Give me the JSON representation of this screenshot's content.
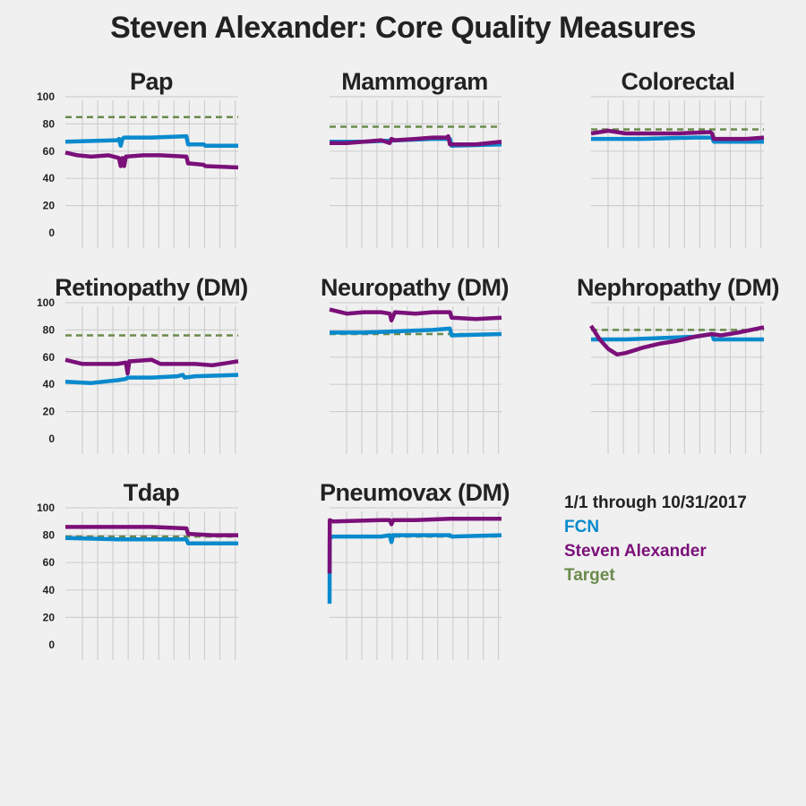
{
  "title": "Steven Alexander: Core Quality Measures",
  "legend": {
    "period": "1/1 through 10/31/2017",
    "items": [
      {
        "label": "FCN",
        "color": "#0a8acd"
      },
      {
        "label": "Steven Alexander",
        "color": "#7b1079"
      },
      {
        "label": "Target",
        "color": "#6a8a4c"
      }
    ]
  },
  "colors": {
    "fcn": "#0a8acd",
    "provider": "#7b1079",
    "target": "#6a8a4c",
    "grid": "#cfcfcf",
    "background": "#f0f0f0"
  },
  "chart_data": [
    {
      "type": "line",
      "title": "Pap",
      "ylim": [
        0,
        100
      ],
      "yticks": [
        0,
        20,
        40,
        60,
        80,
        100
      ],
      "grid": true,
      "target": 85,
      "series": [
        {
          "name": "FCN",
          "x": [
            0,
            0.3,
            0.31,
            0.32,
            0.33,
            0.34,
            0.5,
            0.7,
            0.71,
            0.72,
            0.8,
            0.81,
            1
          ],
          "values": [
            67,
            68,
            69,
            64,
            69,
            70,
            70,
            71,
            65,
            65,
            65,
            64,
            64
          ]
        },
        {
          "name": "Steven Alexander",
          "x": [
            0,
            0.07,
            0.15,
            0.25,
            0.31,
            0.32,
            0.33,
            0.34,
            0.35,
            0.45,
            0.55,
            0.7,
            0.71,
            0.72,
            0.8,
            0.81,
            1
          ],
          "values": [
            59,
            57,
            56,
            57,
            55,
            49,
            55,
            49,
            56,
            57,
            57,
            56,
            51,
            51,
            50,
            49,
            48
          ]
        }
      ]
    },
    {
      "type": "line",
      "title": "Mammogram",
      "ylim": [
        0,
        100
      ],
      "yticks": [
        0,
        20,
        40,
        60,
        80,
        100
      ],
      "grid": true,
      "target": 78,
      "series": [
        {
          "name": "FCN",
          "x": [
            0,
            0.2,
            0.4,
            0.6,
            0.7,
            0.71,
            1
          ],
          "values": [
            67,
            67,
            68,
            69,
            69,
            64,
            65
          ]
        },
        {
          "name": "Steven Alexander",
          "x": [
            0,
            0.1,
            0.2,
            0.3,
            0.35,
            0.36,
            0.38,
            0.5,
            0.6,
            0.68,
            0.69,
            0.7,
            0.75,
            0.85,
            1
          ],
          "values": [
            66,
            66,
            67,
            68,
            66,
            69,
            68,
            69,
            70,
            70,
            71,
            65,
            65,
            65,
            67
          ]
        }
      ]
    },
    {
      "type": "line",
      "title": "Colorectal",
      "ylim": [
        0,
        100
      ],
      "yticks": [
        0,
        20,
        40,
        60,
        80,
        100
      ],
      "grid": true,
      "target": 76,
      "series": [
        {
          "name": "FCN",
          "x": [
            0,
            0.3,
            0.6,
            0.7,
            0.71,
            1
          ],
          "values": [
            69,
            69,
            70,
            70,
            67,
            67
          ]
        },
        {
          "name": "Steven Alexander",
          "x": [
            0,
            0.1,
            0.2,
            0.3,
            0.5,
            0.69,
            0.7,
            0.71,
            0.9,
            1
          ],
          "values": [
            73,
            75,
            73,
            73,
            73,
            74,
            73,
            69,
            69,
            70
          ]
        }
      ]
    },
    {
      "type": "line",
      "title": "Retinopathy (DM)",
      "ylim": [
        0,
        100
      ],
      "yticks": [
        0,
        20,
        40,
        60,
        80,
        100
      ],
      "grid": true,
      "target": 76,
      "series": [
        {
          "name": "FCN",
          "x": [
            0,
            0.15,
            0.3,
            0.35,
            0.36,
            0.5,
            0.65,
            0.68,
            0.69,
            0.75,
            1
          ],
          "values": [
            42,
            41,
            43,
            44,
            45,
            45,
            46,
            47,
            45,
            46,
            47
          ]
        },
        {
          "name": "Steven Alexander",
          "x": [
            0,
            0.1,
            0.2,
            0.3,
            0.35,
            0.36,
            0.37,
            0.38,
            0.5,
            0.55,
            0.65,
            0.75,
            0.85,
            1
          ],
          "values": [
            58,
            55,
            55,
            55,
            56,
            48,
            57,
            57,
            58,
            55,
            55,
            55,
            54,
            57
          ]
        }
      ]
    },
    {
      "type": "line",
      "title": "Neuropathy (DM)",
      "ylim": [
        0,
        100
      ],
      "yticks": [
        0,
        20,
        40,
        60,
        80,
        100
      ],
      "grid": true,
      "target": 77,
      "series": [
        {
          "name": "FCN",
          "x": [
            0,
            0.2,
            0.4,
            0.6,
            0.7,
            0.71,
            1
          ],
          "values": [
            78,
            78,
            79,
            80,
            81,
            76,
            77
          ]
        },
        {
          "name": "Steven Alexander",
          "x": [
            0,
            0.1,
            0.2,
            0.3,
            0.35,
            0.36,
            0.38,
            0.5,
            0.6,
            0.7,
            0.71,
            0.85,
            1
          ],
          "values": [
            95,
            92,
            93,
            93,
            92,
            87,
            93,
            92,
            93,
            93,
            89,
            88,
            89
          ]
        }
      ]
    },
    {
      "type": "line",
      "title": "Nephropathy (DM)",
      "ylim": [
        0,
        100
      ],
      "yticks": [
        0,
        20,
        40,
        60,
        80,
        100
      ],
      "grid": true,
      "target": 80,
      "series": [
        {
          "name": "FCN",
          "x": [
            0,
            0.2,
            0.4,
            0.6,
            0.7,
            0.71,
            1
          ],
          "values": [
            73,
            73,
            74,
            75,
            77,
            73,
            73
          ]
        },
        {
          "name": "Steven Alexander",
          "x": [
            0,
            0.05,
            0.1,
            0.15,
            0.2,
            0.3,
            0.4,
            0.5,
            0.6,
            0.7,
            0.75,
            0.85,
            1
          ],
          "values": [
            83,
            73,
            66,
            62,
            63,
            67,
            70,
            72,
            75,
            77,
            76,
            78,
            82
          ]
        }
      ]
    },
    {
      "type": "line",
      "title": "Tdap",
      "ylim": [
        0,
        100
      ],
      "yticks": [
        0,
        20,
        40,
        60,
        80,
        100
      ],
      "grid": true,
      "target": 79,
      "series": [
        {
          "name": "FCN",
          "x": [
            0,
            0.3,
            0.6,
            0.7,
            0.71,
            1
          ],
          "values": [
            78,
            77,
            77,
            77,
            74,
            74
          ]
        },
        {
          "name": "Steven Alexander",
          "x": [
            0,
            0.2,
            0.4,
            0.5,
            0.7,
            0.71,
            0.85,
            1
          ],
          "values": [
            86,
            86,
            86,
            86,
            85,
            81,
            80,
            80
          ]
        }
      ]
    },
    {
      "type": "line",
      "title": "Pneumovax (DM)",
      "ylim": [
        0,
        100
      ],
      "yticks": [
        0,
        20,
        40,
        60,
        80,
        100
      ],
      "grid": true,
      "target": 79,
      "series": [
        {
          "name": "FCN",
          "x": [
            0,
            0.001,
            0.02,
            0.3,
            0.35,
            0.36,
            0.37,
            0.5,
            0.7,
            0.71,
            1
          ],
          "values": [
            30,
            78,
            79,
            79,
            80,
            75,
            80,
            80,
            80,
            79,
            80
          ]
        },
        {
          "name": "Steven Alexander",
          "x": [
            0,
            0.001,
            0.02,
            0.3,
            0.35,
            0.36,
            0.37,
            0.5,
            0.7,
            1
          ],
          "values": [
            52,
            91,
            90,
            91,
            91,
            88,
            91,
            91,
            92,
            92
          ]
        }
      ]
    }
  ]
}
